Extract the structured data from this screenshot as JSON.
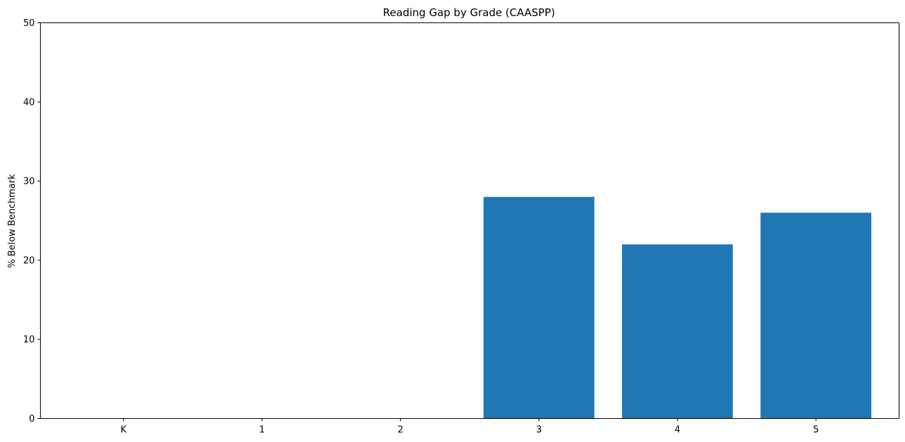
{
  "chart_data": {
    "type": "bar",
    "title": "Reading Gap by Grade (CAASPP)",
    "xlabel": "",
    "ylabel": "% Below Benchmark",
    "categories": [
      "K",
      "1",
      "2",
      "3",
      "4",
      "5"
    ],
    "values": [
      0,
      0,
      0,
      28,
      22,
      26
    ],
    "ylim": [
      0,
      50
    ],
    "yticks": [
      0,
      10,
      20,
      30,
      40,
      50
    ],
    "grid": false,
    "bar_color": "#1f77b4"
  }
}
